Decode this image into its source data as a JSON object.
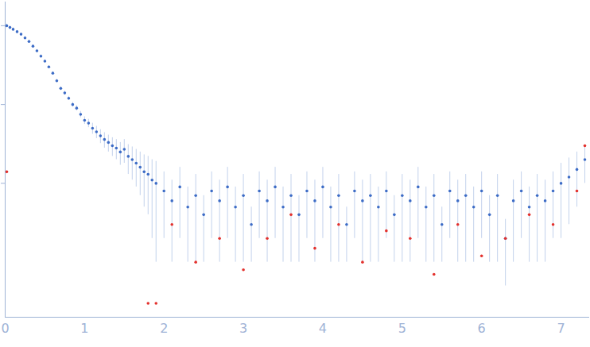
{
  "chart_data": {
    "type": "scatter",
    "log": "y",
    "tick_labels": "x",
    "grid": false,
    "xlim": [
      0,
      7.35
    ],
    "xticks": [
      0,
      1,
      2,
      3,
      4,
      5,
      6,
      7
    ],
    "ylim": [
      0.0002,
      2
    ],
    "yticks": [
      0.01,
      0.1,
      1
    ],
    "series": [
      {
        "color": "#3d6cc6",
        "marker": "circle",
        "x": [
          0.02,
          0.06,
          0.1,
          0.15,
          0.2,
          0.25,
          0.3,
          0.35,
          0.4,
          0.45,
          0.5,
          0.55,
          0.6,
          0.65,
          0.7,
          0.75,
          0.8,
          0.85,
          0.9,
          0.95,
          1.0,
          1.05,
          1.1,
          1.15,
          1.2,
          1.25,
          1.3,
          1.35,
          1.4,
          1.45,
          1.5,
          1.55,
          1.6,
          1.65,
          1.7,
          1.75,
          1.8,
          1.85,
          1.9,
          2.0,
          2.1,
          2.2,
          2.3,
          2.4,
          2.5,
          2.6,
          2.7,
          2.8,
          2.9,
          3.0,
          3.1,
          3.2,
          3.3,
          3.4,
          3.5,
          3.6,
          3.7,
          3.8,
          3.9,
          4.0,
          4.1,
          4.2,
          4.3,
          4.4,
          4.5,
          4.6,
          4.7,
          4.8,
          4.9,
          5.0,
          5.1,
          5.2,
          5.3,
          5.4,
          5.5,
          5.6,
          5.7,
          5.8,
          5.9,
          6.0,
          6.1,
          6.2,
          6.3,
          6.4,
          6.5,
          6.6,
          6.7,
          6.8,
          6.9,
          7.0,
          7.1,
          7.2,
          7.3
        ],
        "values": [
          1.0,
          0.95,
          0.9,
          0.84,
          0.78,
          0.7,
          0.63,
          0.55,
          0.48,
          0.41,
          0.355,
          0.3,
          0.25,
          0.2,
          0.16,
          0.14,
          0.12,
          0.1,
          0.09,
          0.075,
          0.063,
          0.058,
          0.05,
          0.045,
          0.04,
          0.036,
          0.033,
          0.03,
          0.028,
          0.025,
          0.027,
          0.022,
          0.02,
          0.018,
          0.016,
          0.014,
          0.013,
          0.011,
          0.01,
          0.008,
          0.006,
          0.009,
          0.005,
          0.007,
          0.004,
          0.008,
          0.006,
          0.009,
          0.005,
          0.007,
          0.003,
          0.008,
          0.006,
          0.009,
          0.005,
          0.007,
          0.004,
          0.008,
          0.006,
          0.009,
          0.005,
          0.007,
          0.003,
          0.008,
          0.006,
          0.007,
          0.005,
          0.008,
          0.004,
          0.007,
          0.006,
          0.009,
          0.005,
          0.007,
          0.003,
          0.008,
          0.006,
          0.007,
          0.005,
          0.008,
          0.004,
          0.007,
          0.002,
          0.006,
          0.008,
          0.005,
          0.007,
          0.006,
          0.008,
          0.01,
          0.012,
          0.015,
          0.02
        ],
        "errors": [
          0.05,
          0.04,
          0.04,
          0.03,
          0.03,
          0.03,
          0.03,
          0.02,
          0.02,
          0.02,
          0.015,
          0.012,
          0.01,
          0.01,
          0.008,
          0.008,
          0.007,
          0.007,
          0.007,
          0.007,
          0.007,
          0.007,
          0.008,
          0.008,
          0.008,
          0.008,
          0.008,
          0.008,
          0.008,
          0.008,
          0.009,
          0.009,
          0.009,
          0.009,
          0.009,
          0.009,
          0.009,
          0.009,
          0.009,
          0.006,
          0.005,
          0.007,
          0.004,
          0.006,
          0.003,
          0.006,
          0.005,
          0.007,
          0.004,
          0.006,
          0.002,
          0.006,
          0.005,
          0.007,
          0.004,
          0.006,
          0.003,
          0.006,
          0.005,
          0.007,
          0.004,
          0.006,
          0.002,
          0.006,
          0.005,
          0.006,
          0.004,
          0.006,
          0.003,
          0.006,
          0.005,
          0.007,
          0.004,
          0.006,
          0.002,
          0.006,
          0.005,
          0.006,
          0.004,
          0.006,
          0.003,
          0.006,
          0.0015,
          0.005,
          0.006,
          0.004,
          0.006,
          0.005,
          0.006,
          0.008,
          0.009,
          0.01,
          0.01
        ]
      },
      {
        "color": "#e3312d",
        "marker": "circle",
        "x": [
          0.02,
          1.8,
          1.9,
          2.1,
          2.4,
          2.7,
          3.0,
          3.3,
          3.6,
          3.9,
          4.2,
          4.5,
          4.8,
          5.1,
          5.4,
          5.7,
          6.0,
          6.3,
          6.6,
          6.9,
          7.2,
          7.3
        ],
        "values": [
          0.014,
          0.0003,
          0.0003,
          0.003,
          0.001,
          0.002,
          0.0008,
          0.002,
          0.004,
          0.0015,
          0.003,
          0.001,
          0.0025,
          0.002,
          0.0007,
          0.003,
          0.0012,
          0.002,
          0.004,
          0.003,
          0.008,
          0.03
        ]
      }
    ]
  }
}
